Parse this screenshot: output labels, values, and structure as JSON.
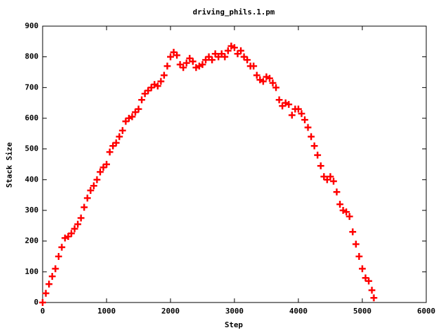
{
  "chart_data": {
    "type": "scatter",
    "title": "driving_phils.1.pm",
    "x_label": "Step",
    "y_label": "Stack Size",
    "color": "#ff0000",
    "marker": "plus",
    "x": [
      0,
      50,
      100,
      150,
      200,
      250,
      300,
      350,
      400,
      450,
      500,
      550,
      600,
      650,
      700,
      750,
      800,
      850,
      900,
      950,
      1000,
      1050,
      1100,
      1150,
      1200,
      1250,
      1300,
      1350,
      1400,
      1450,
      1500,
      1550,
      1600,
      1650,
      1700,
      1750,
      1800,
      1850,
      1900,
      1950,
      2000,
      2050,
      2100,
      2150,
      2200,
      2250,
      2300,
      2350,
      2400,
      2450,
      2500,
      2550,
      2600,
      2650,
      2700,
      2750,
      2800,
      2850,
      2900,
      2950,
      3000,
      3050,
      3100,
      3150,
      3200,
      3250,
      3300,
      3350,
      3400,
      3450,
      3500,
      3550,
      3600,
      3650,
      3700,
      3750,
      3800,
      3850,
      3900,
      3950,
      4000,
      4050,
      4100,
      4150,
      4200,
      4250,
      4300,
      4350,
      4400,
      4450,
      4500,
      4550,
      4600,
      4650,
      4700,
      4750,
      4800,
      4850,
      4900,
      4950,
      5000,
      5050,
      5100,
      5150,
      5180
    ],
    "y": [
      0,
      30,
      60,
      85,
      110,
      150,
      180,
      210,
      215,
      225,
      240,
      255,
      275,
      310,
      340,
      365,
      380,
      400,
      425,
      440,
      450,
      490,
      510,
      520,
      540,
      560,
      590,
      600,
      605,
      620,
      630,
      660,
      680,
      690,
      700,
      710,
      705,
      720,
      740,
      770,
      800,
      815,
      805,
      775,
      765,
      780,
      795,
      785,
      765,
      770,
      775,
      790,
      800,
      790,
      810,
      800,
      810,
      800,
      820,
      835,
      830,
      810,
      820,
      800,
      790,
      770,
      770,
      740,
      725,
      720,
      735,
      730,
      715,
      700,
      660,
      640,
      650,
      645,
      610,
      630,
      630,
      615,
      595,
      570,
      540,
      510,
      480,
      445,
      410,
      400,
      410,
      395,
      360,
      320,
      300,
      295,
      280,
      230,
      190,
      150,
      110,
      80,
      70,
      40,
      15
    ],
    "xlim": [
      0,
      6000
    ],
    "ylim": [
      0,
      900
    ],
    "xticks": [
      0,
      1000,
      2000,
      3000,
      4000,
      5000,
      6000
    ],
    "yticks": [
      0,
      100,
      200,
      300,
      400,
      500,
      600,
      700,
      800,
      900
    ]
  }
}
